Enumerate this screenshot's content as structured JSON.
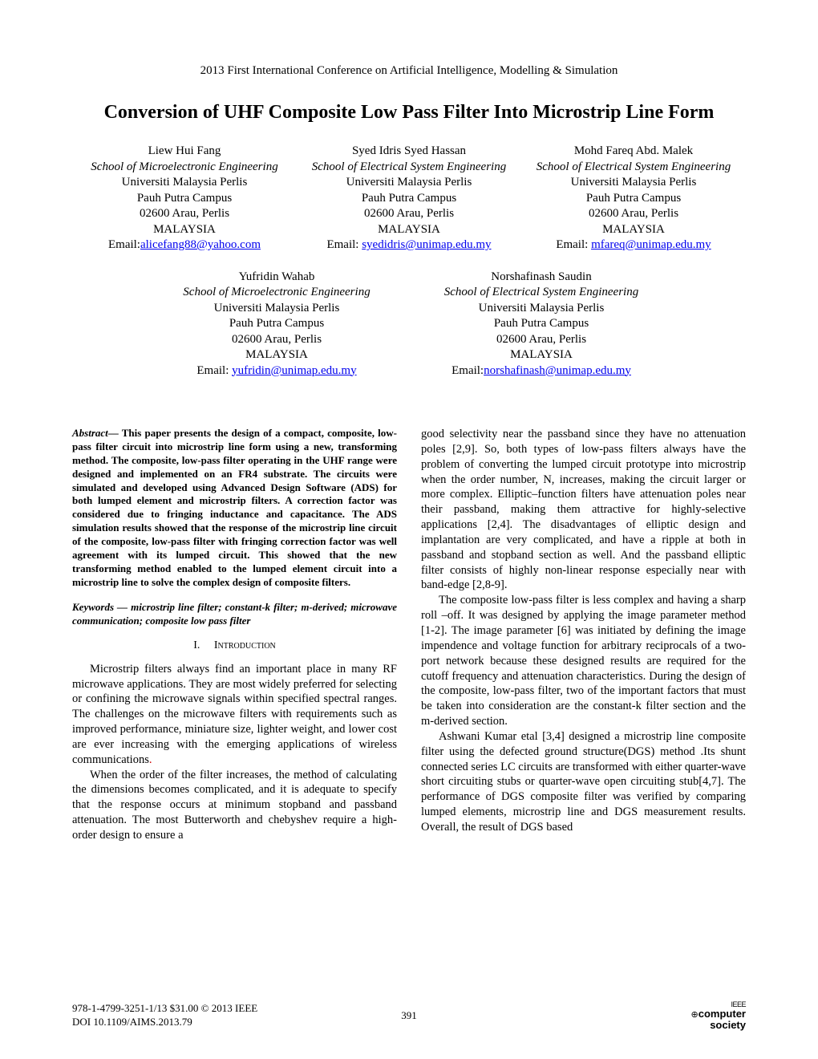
{
  "header": {
    "conference": "2013 First International Conference on Artificial Intelligence, Modelling & Simulation"
  },
  "title": "Conversion of UHF Composite Low Pass Filter Into Microstrip Line Form",
  "authors_row1": [
    {
      "name": "Liew Hui Fang",
      "school": "School of Microelectronic Engineering",
      "university": "Universiti Malaysia Perlis",
      "campus": "Pauh Putra Campus",
      "address": "02600 Arau, Perlis",
      "country": "MALAYSIA",
      "email_prefix": "Email:",
      "email": "alicefang88@yahoo.com"
    },
    {
      "name": "Syed Idris Syed Hassan",
      "school": "School of Electrical System Engineering",
      "university": "Universiti Malaysia Perlis",
      "campus": "Pauh Putra Campus",
      "address": "02600 Arau, Perlis",
      "country": "MALAYSIA",
      "email_prefix": "Email: ",
      "email": "syedidris@unimap.edu.my"
    },
    {
      "name": "Mohd Fareq Abd. Malek",
      "school": "School of Electrical System Engineering",
      "university": "Universiti Malaysia Perlis",
      "campus": "Pauh Putra Campus",
      "address": "02600 Arau, Perlis",
      "country": "MALAYSIA",
      "email_prefix": "Email: ",
      "email": "mfareq@unimap.edu.my"
    }
  ],
  "authors_row2": [
    {
      "name": "Yufridin Wahab",
      "school": "School of Microelectronic Engineering",
      "university": "Universiti Malaysia Perlis",
      "campus": "Pauh Putra Campus",
      "address": "02600 Arau, Perlis",
      "country": "MALAYSIA",
      "email_prefix": "Email: ",
      "email": "yufridin@unimap.edu.my"
    },
    {
      "name": "Norshafinash Saudin",
      "school": "School of Electrical System Engineering",
      "university": "Universiti Malaysia Perlis",
      "campus": "Pauh Putra Campus",
      "address": "02600 Arau, Perlis",
      "country": "MALAYSIA",
      "email_prefix": "Email:",
      "email": "norshafinash@unimap.edu.my"
    }
  ],
  "abstract": {
    "label": "Abstract",
    "text": "— This paper presents the design of a compact, composite, low-pass filter circuit into microstrip line form using a new, transforming method. The composite, low-pass filter operating in the UHF range were designed and implemented on an FR4 substrate. The circuits were simulated and developed using Advanced Design Software (ADS) for both lumped element and microstrip filters. A correction factor was considered due to fringing inductance and capacitance. The ADS simulation results showed that the response of the microstrip line circuit of the composite, low-pass filter with fringing correction factor was well agreement with its lumped circuit. This showed that the new transforming method enabled to the lumped element circuit into a microstrip line to solve the complex design of composite filters."
  },
  "keywords": {
    "label": "Keywords — ",
    "text": "microstrip line filter; constant-k filter; m-derived; microwave communication; composite low pass filter"
  },
  "section1": {
    "num": "I.",
    "name": "Introduction"
  },
  "body": {
    "p1": "Microstrip filters always find an important place in many RF microwave applications. They are most widely preferred for selecting or confining the microwave signals within specified spectral ranges. The challenges on the microwave filters with requirements such as improved performance, miniature size, lighter weight, and lower cost are ever increasing with the emerging applications of wireless communications",
    "p1_dot": ".",
    "p2": "When the order of the filter increases, the method of calculating the dimensions becomes complicated, and it is adequate to specify that the response occurs at minimum stopband and passband attenuation. The most Butterworth and chebyshev require a high-order design to ensure a",
    "p3": "good selectivity near the passband since they have no attenuation poles [2,9]. So, both types of low-pass filters always have the problem of converting the lumped circuit prototype into microstrip when the order number, N, increases, making the circuit larger or more complex. Elliptic–function filters have attenuation poles near their passband, making them attractive for highly-selective applications [2,4]. The disadvantages of elliptic  design and implantation are very complicated, and have a ripple at both in passband and stopband section as well. And the passband  elliptic filter consists of highly non-linear response especially near with band-edge [2,8-9].",
    "p4": "The composite low-pass filter is less complex and having a sharp roll –off. It was designed by applying the image parameter method [1-2]. The image parameter [6] was initiated by defining the image impendence and voltage function for arbitrary reciprocals of a two-port network because these designed results are required for the cutoff frequency and attenuation characteristics. During the design of the composite, low-pass filter, two of the important factors that must be taken into consideration are the constant-k filter section and the m-derived section.",
    "p5": "Ashwani Kumar etal [3,4] designed a microstrip line composite filter using the defected ground structure(DGS) method .Its shunt connected series LC circuits are transformed with either quarter-wave short circuiting stubs or quarter-wave open  circuiting stub[4,7]. The performance of DGS composite filter was verified by comparing lumped elements, microstrip line and DGS measurement results. Overall, the result of DGS based"
  },
  "footer": {
    "isbn": "978-1-4799-3251-1/13 $31.00 © 2013 IEEE",
    "doi": "DOI 10.1109/AIMS.2013.79",
    "page": "391",
    "logo_top": "IEEE",
    "logo_mid": "computer",
    "logo_bot": "society"
  }
}
